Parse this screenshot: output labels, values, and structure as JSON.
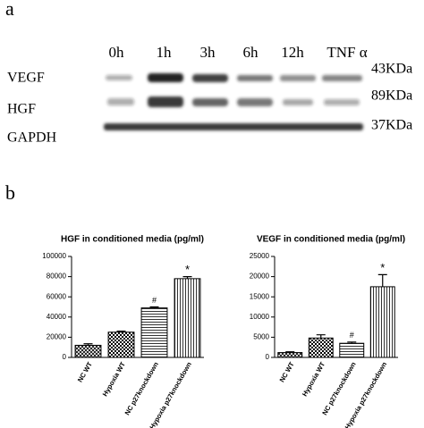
{
  "panel_labels": [
    "a",
    "b"
  ],
  "blot": {
    "lanes": [
      "0h",
      "1h",
      "3h",
      "6h",
      "12h",
      "TNF α"
    ],
    "rows": [
      "VEGF",
      "HGF",
      "GAPDH"
    ],
    "sizes": [
      "43KDa",
      "89KDa",
      "37KDa"
    ]
  },
  "chart_data": [
    {
      "type": "bar",
      "title": "HGF in conditioned media (pg/ml)",
      "categories": [
        "NC WT",
        "Hypoxia WT",
        "NC p27knockdown",
        "Hypoxia p27knockdown"
      ],
      "values": [
        12000,
        25000,
        49000,
        78000
      ],
      "errors": [
        1500,
        1000,
        1000,
        2000
      ],
      "markers": [
        null,
        null,
        "#",
        "*"
      ],
      "color": "#000000",
      "ylim": [
        0,
        100000
      ],
      "yticks": [
        0,
        20000,
        40000,
        60000,
        80000,
        100000
      ]
    },
    {
      "type": "bar",
      "title": "VEGF in conditioned media (pg/ml)",
      "categories": [
        "NC WT",
        "Hypoxia WT",
        "NC p27knockdown",
        "Hypoxia p27knockdown"
      ],
      "values": [
        1200,
        4800,
        3500,
        17500
      ],
      "errors": [
        200,
        800,
        300,
        3000
      ],
      "markers": [
        null,
        null,
        "#",
        "*"
      ],
      "color": "#000000",
      "ylim": [
        0,
        25000
      ],
      "yticks": [
        0,
        5000,
        10000,
        15000,
        20000,
        25000
      ]
    }
  ]
}
